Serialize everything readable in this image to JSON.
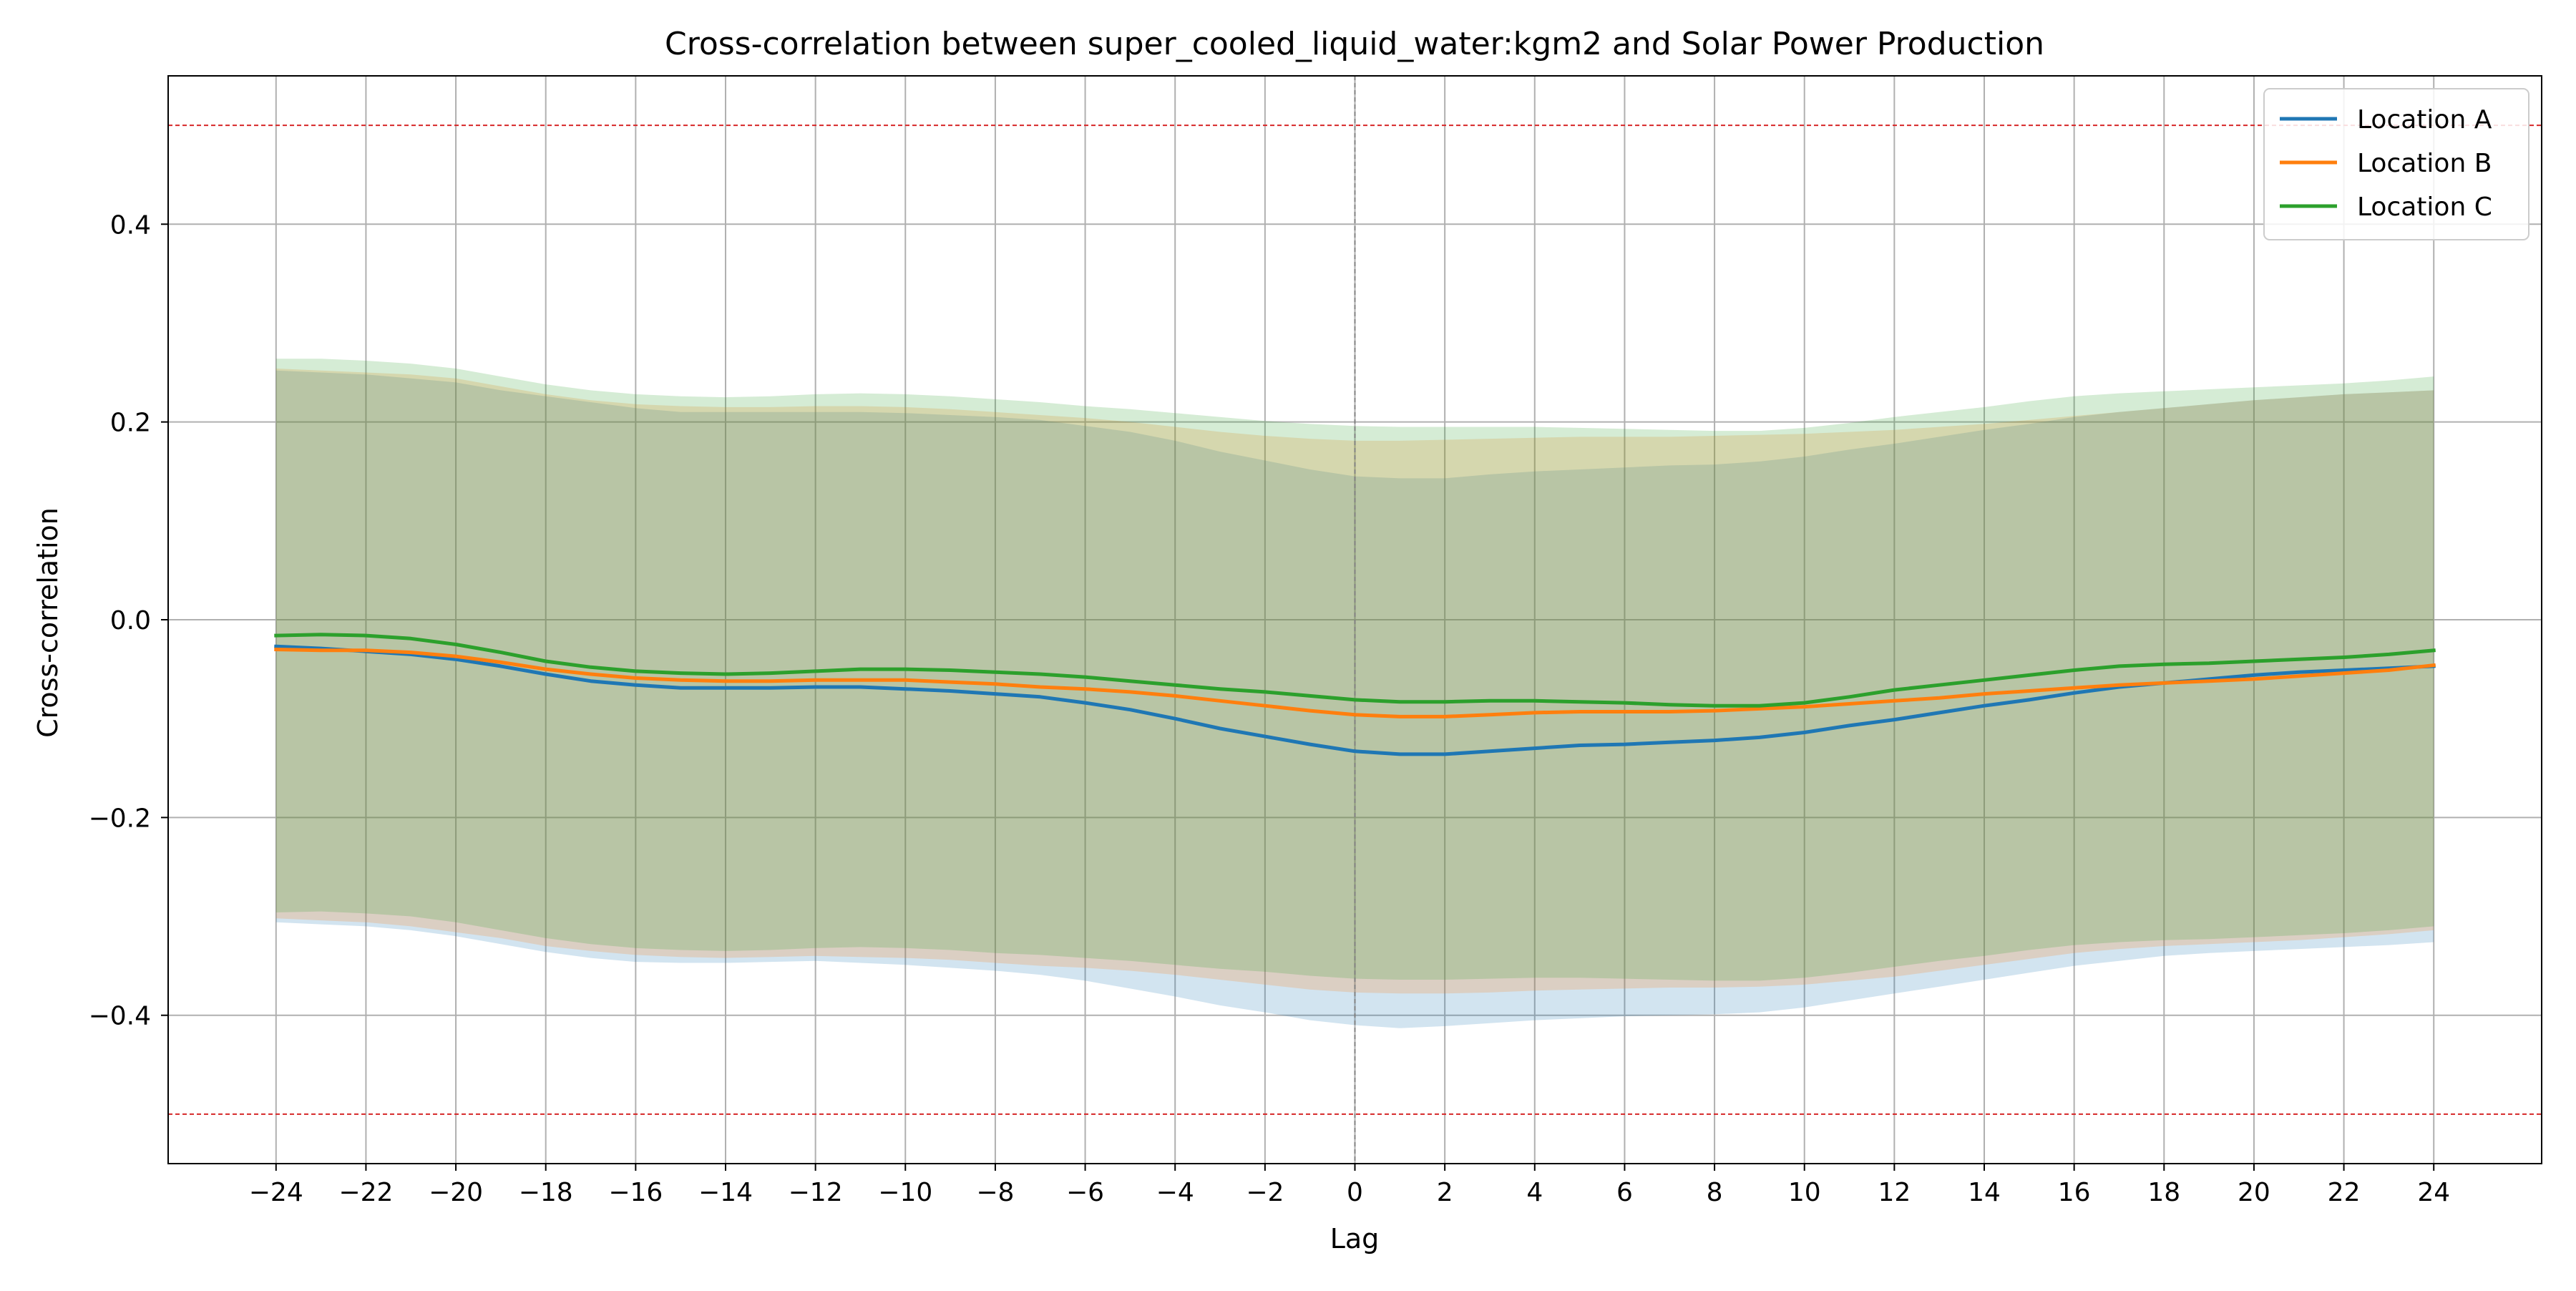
{
  "chart_data": {
    "type": "line",
    "title": "Cross-correlation between super_cooled_liquid_water:kgm2 and Solar Power Production",
    "xlabel": "Lag",
    "ylabel": "Cross-correlation",
    "xlim": [
      -26.4,
      26.4
    ],
    "ylim": [
      -0.55,
      0.55
    ],
    "x_ticks": [
      -24,
      -22,
      -20,
      -18,
      -16,
      -14,
      -12,
      -10,
      -8,
      -6,
      -4,
      -2,
      0,
      2,
      4,
      6,
      8,
      10,
      12,
      14,
      16,
      18,
      20,
      22,
      24
    ],
    "x_tick_labels": [
      "−24",
      "−22",
      "−20",
      "−18",
      "−16",
      "−14",
      "−12",
      "−10",
      "−8",
      "−6",
      "−4",
      "−2",
      "0",
      "2",
      "4",
      "6",
      "8",
      "10",
      "12",
      "14",
      "16",
      "18",
      "20",
      "22",
      "24"
    ],
    "y_ticks": [
      -0.4,
      -0.2,
      0.0,
      0.2,
      0.4
    ],
    "y_tick_labels": [
      "−0.4",
      "−0.2",
      "0.0",
      "0.2",
      "0.4"
    ],
    "grid": true,
    "legend_position": "top-right",
    "reference_lines": {
      "horizontal": [
        0.5,
        -0.5
      ],
      "horizontal_color": "#d62728",
      "vertical": [
        0
      ],
      "vertical_color": "#808080"
    },
    "x": [
      -24,
      -23,
      -22,
      -21,
      -20,
      -19,
      -18,
      -17,
      -16,
      -15,
      -14,
      -13,
      -12,
      -11,
      -10,
      -9,
      -8,
      -7,
      -6,
      -5,
      -4,
      -3,
      -2,
      -1,
      0,
      1,
      2,
      3,
      4,
      5,
      6,
      7,
      8,
      9,
      10,
      11,
      12,
      13,
      14,
      15,
      16,
      17,
      18,
      19,
      20,
      21,
      22,
      23,
      24
    ],
    "series": [
      {
        "name": "Location A",
        "color": "#1f77b4",
        "values": [
          -0.027,
          -0.029,
          -0.032,
          -0.035,
          -0.04,
          -0.047,
          -0.055,
          -0.062,
          -0.066,
          -0.069,
          -0.069,
          -0.069,
          -0.068,
          -0.068,
          -0.07,
          -0.072,
          -0.075,
          -0.078,
          -0.084,
          -0.091,
          -0.1,
          -0.11,
          -0.118,
          -0.126,
          -0.133,
          -0.136,
          -0.136,
          -0.133,
          -0.13,
          -0.127,
          -0.126,
          -0.124,
          -0.122,
          -0.119,
          -0.114,
          -0.107,
          -0.101,
          -0.094,
          -0.087,
          -0.081,
          -0.074,
          -0.068,
          -0.064,
          -0.06,
          -0.056,
          -0.053,
          -0.051,
          -0.049,
          -0.047
        ],
        "lower": [
          -0.306,
          -0.308,
          -0.31,
          -0.314,
          -0.32,
          -0.328,
          -0.336,
          -0.342,
          -0.346,
          -0.347,
          -0.347,
          -0.346,
          -0.345,
          -0.347,
          -0.349,
          -0.352,
          -0.355,
          -0.359,
          -0.365,
          -0.373,
          -0.381,
          -0.39,
          -0.397,
          -0.405,
          -0.41,
          -0.413,
          -0.411,
          -0.408,
          -0.405,
          -0.403,
          -0.401,
          -0.4,
          -0.399,
          -0.397,
          -0.392,
          -0.385,
          -0.378,
          -0.371,
          -0.364,
          -0.357,
          -0.35,
          -0.345,
          -0.34,
          -0.337,
          -0.335,
          -0.333,
          -0.331,
          -0.329,
          -0.326
        ],
        "upper": [
          0.252,
          0.25,
          0.248,
          0.244,
          0.24,
          0.232,
          0.226,
          0.22,
          0.214,
          0.21,
          0.21,
          0.21,
          0.21,
          0.21,
          0.209,
          0.207,
          0.205,
          0.202,
          0.196,
          0.19,
          0.181,
          0.17,
          0.161,
          0.152,
          0.145,
          0.143,
          0.143,
          0.147,
          0.15,
          0.152,
          0.154,
          0.156,
          0.157,
          0.16,
          0.165,
          0.172,
          0.178,
          0.185,
          0.192,
          0.198,
          0.205,
          0.21,
          0.214,
          0.218,
          0.222,
          0.225,
          0.228,
          0.23,
          0.232
        ]
      },
      {
        "name": "Location B",
        "color": "#ff7f0e",
        "values": [
          -0.03,
          -0.031,
          -0.031,
          -0.033,
          -0.037,
          -0.043,
          -0.05,
          -0.055,
          -0.059,
          -0.061,
          -0.062,
          -0.062,
          -0.061,
          -0.061,
          -0.061,
          -0.063,
          -0.065,
          -0.068,
          -0.07,
          -0.073,
          -0.077,
          -0.082,
          -0.087,
          -0.092,
          -0.096,
          -0.098,
          -0.098,
          -0.096,
          -0.094,
          -0.093,
          -0.093,
          -0.093,
          -0.092,
          -0.09,
          -0.088,
          -0.085,
          -0.082,
          -0.079,
          -0.075,
          -0.072,
          -0.069,
          -0.066,
          -0.064,
          -0.062,
          -0.06,
          -0.057,
          -0.054,
          -0.051,
          -0.046
        ],
        "lower": [
          -0.302,
          -0.304,
          -0.306,
          -0.31,
          -0.316,
          -0.322,
          -0.33,
          -0.335,
          -0.339,
          -0.341,
          -0.342,
          -0.341,
          -0.34,
          -0.341,
          -0.342,
          -0.344,
          -0.347,
          -0.35,
          -0.352,
          -0.355,
          -0.359,
          -0.364,
          -0.369,
          -0.374,
          -0.377,
          -0.378,
          -0.378,
          -0.377,
          -0.375,
          -0.374,
          -0.373,
          -0.372,
          -0.372,
          -0.371,
          -0.369,
          -0.365,
          -0.361,
          -0.355,
          -0.349,
          -0.343,
          -0.337,
          -0.333,
          -0.33,
          -0.328,
          -0.326,
          -0.324,
          -0.321,
          -0.318,
          -0.314
        ],
        "upper": [
          0.254,
          0.252,
          0.25,
          0.248,
          0.244,
          0.236,
          0.228,
          0.222,
          0.218,
          0.216,
          0.215,
          0.215,
          0.216,
          0.216,
          0.215,
          0.213,
          0.21,
          0.207,
          0.204,
          0.2,
          0.195,
          0.19,
          0.186,
          0.183,
          0.181,
          0.181,
          0.182,
          0.183,
          0.184,
          0.185,
          0.185,
          0.185,
          0.186,
          0.187,
          0.188,
          0.19,
          0.192,
          0.195,
          0.198,
          0.202,
          0.206,
          0.21,
          0.214,
          0.218,
          0.222,
          0.225,
          0.228,
          0.23,
          0.232
        ]
      },
      {
        "name": "Location C",
        "color": "#2ca02c",
        "values": [
          -0.016,
          -0.015,
          -0.016,
          -0.019,
          -0.025,
          -0.033,
          -0.042,
          -0.048,
          -0.052,
          -0.054,
          -0.055,
          -0.054,
          -0.052,
          -0.05,
          -0.05,
          -0.051,
          -0.053,
          -0.055,
          -0.058,
          -0.062,
          -0.066,
          -0.07,
          -0.073,
          -0.077,
          -0.081,
          -0.083,
          -0.083,
          -0.082,
          -0.082,
          -0.083,
          -0.084,
          -0.086,
          -0.087,
          -0.087,
          -0.084,
          -0.078,
          -0.071,
          -0.066,
          -0.061,
          -0.056,
          -0.051,
          -0.047,
          -0.045,
          -0.044,
          -0.042,
          -0.04,
          -0.038,
          -0.035,
          -0.031
        ],
        "lower": [
          -0.296,
          -0.295,
          -0.297,
          -0.3,
          -0.306,
          -0.314,
          -0.322,
          -0.328,
          -0.332,
          -0.334,
          -0.335,
          -0.334,
          -0.332,
          -0.331,
          -0.332,
          -0.334,
          -0.337,
          -0.339,
          -0.342,
          -0.345,
          -0.349,
          -0.353,
          -0.356,
          -0.36,
          -0.363,
          -0.364,
          -0.364,
          -0.363,
          -0.362,
          -0.362,
          -0.363,
          -0.364,
          -0.365,
          -0.365,
          -0.362,
          -0.357,
          -0.351,
          -0.345,
          -0.34,
          -0.334,
          -0.329,
          -0.326,
          -0.324,
          -0.323,
          -0.321,
          -0.319,
          -0.317,
          -0.314,
          -0.31
        ],
        "upper": [
          0.264,
          0.264,
          0.262,
          0.259,
          0.254,
          0.246,
          0.238,
          0.232,
          0.228,
          0.226,
          0.225,
          0.226,
          0.228,
          0.229,
          0.228,
          0.226,
          0.223,
          0.22,
          0.216,
          0.213,
          0.209,
          0.205,
          0.201,
          0.198,
          0.196,
          0.195,
          0.195,
          0.195,
          0.195,
          0.194,
          0.193,
          0.192,
          0.191,
          0.191,
          0.194,
          0.199,
          0.205,
          0.21,
          0.215,
          0.221,
          0.226,
          0.229,
          0.231,
          0.233,
          0.235,
          0.237,
          0.239,
          0.242,
          0.246
        ]
      }
    ]
  }
}
